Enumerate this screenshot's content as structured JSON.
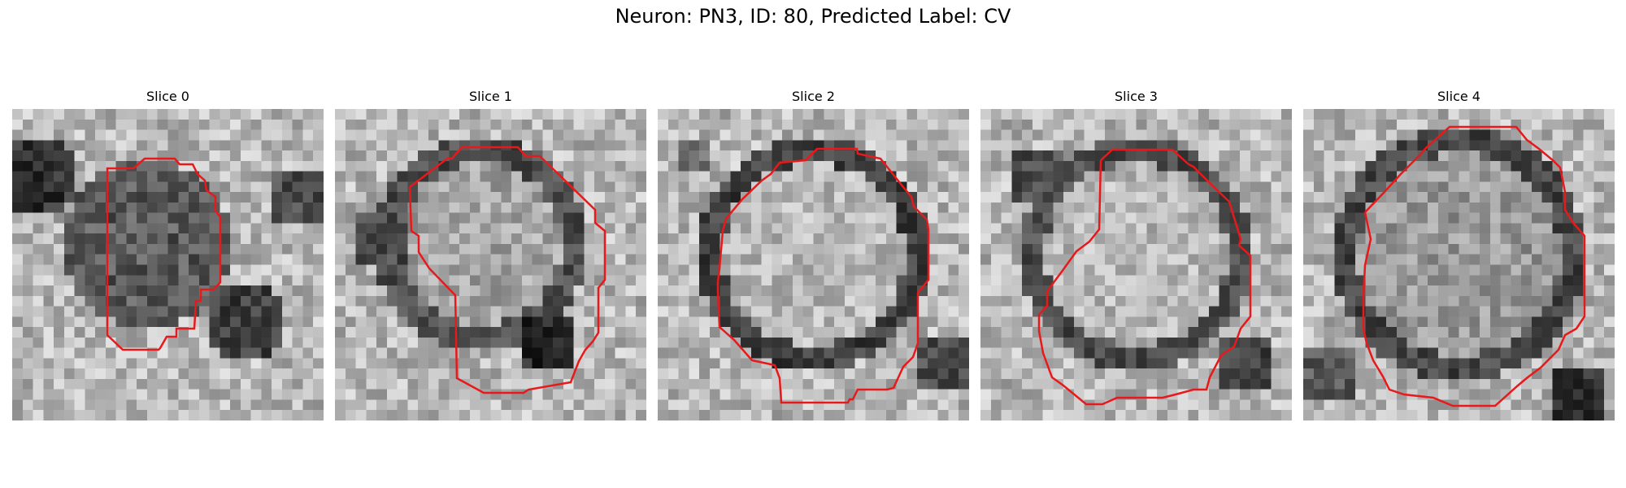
{
  "figure": {
    "suptitle": "Neuron: PN3, ID: 80, Predicted Label: CV",
    "contour_color": "#e8191b",
    "colormap": "gray",
    "panels": [
      {
        "title": "Slice 0",
        "image_name": "slice-0-image"
      },
      {
        "title": "Slice 1",
        "image_name": "slice-1-image"
      },
      {
        "title": "Slice 2",
        "image_name": "slice-2-image"
      },
      {
        "title": "Slice 3",
        "image_name": "slice-3-image"
      },
      {
        "title": "Slice 4",
        "image_name": "slice-4-image"
      }
    ]
  }
}
